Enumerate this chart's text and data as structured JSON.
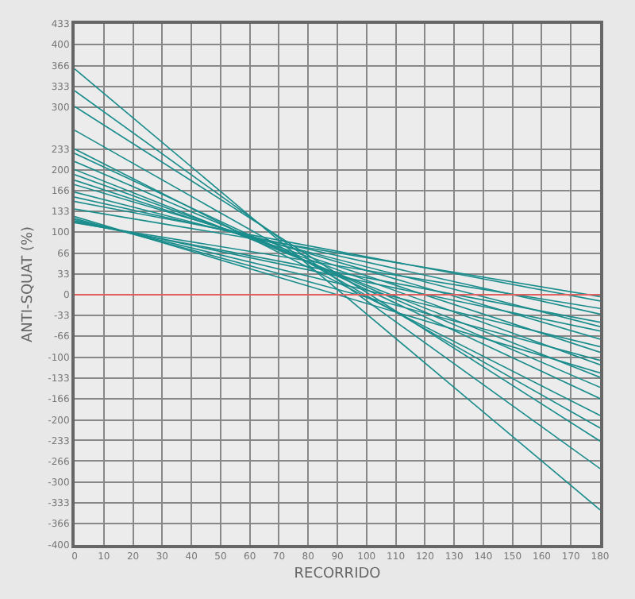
{
  "chart_data": {
    "type": "line",
    "xlabel": "RECORRIDO",
    "ylabel": "ANTI-SQUAT (%)",
    "x": [
      0,
      180
    ],
    "series": [
      {
        "color": "#1a8c8c",
        "values": [
          361,
          -344
        ]
      },
      {
        "color": "#1a8c8c",
        "values": [
          326,
          -278
        ]
      },
      {
        "color": "#1a8c8c",
        "values": [
          301,
          -234
        ]
      },
      {
        "color": "#1a8c8c",
        "values": [
          263,
          -213
        ]
      },
      {
        "color": "#1a8c8c",
        "values": [
          233,
          -193
        ]
      },
      {
        "color": "#1a8c8c",
        "values": [
          226,
          -166
        ]
      },
      {
        "color": "#1a8c8c",
        "values": [
          213,
          -148
        ]
      },
      {
        "color": "#1a8c8c",
        "values": [
          200,
          -132
        ]
      },
      {
        "color": "#1a8c8c",
        "values": [
          192,
          -112
        ]
      },
      {
        "color": "#1a8c8c",
        "values": [
          183,
          -92
        ]
      },
      {
        "color": "#1a8c8c",
        "values": [
          176,
          -71
        ]
      },
      {
        "color": "#1a8c8c",
        "values": [
          164,
          -51
        ]
      },
      {
        "color": "#1a8c8c",
        "values": [
          156,
          -31
        ]
      },
      {
        "color": "#1a8c8c",
        "values": [
          149,
          -10
        ]
      },
      {
        "color": "#1a8c8c",
        "values": [
          137,
          -3
        ]
      },
      {
        "color": "#1a8c8c",
        "values": [
          125,
          -125
        ]
      },
      {
        "color": "#1a8c8c",
        "values": [
          122,
          -105
        ]
      },
      {
        "color": "#1a8c8c",
        "values": [
          120,
          -83
        ]
      },
      {
        "color": "#1a8c8c",
        "values": [
          118,
          -58
        ]
      },
      {
        "color": "#1a8c8c",
        "values": [
          116,
          -44
        ]
      },
      {
        "color": "#1a8c8c",
        "values": [
          115,
          -22
        ]
      }
    ],
    "xlim": [
      0,
      180
    ],
    "xticks": [
      0,
      10,
      20,
      30,
      40,
      50,
      60,
      70,
      80,
      90,
      100,
      110,
      120,
      130,
      140,
      150,
      160,
      170,
      180
    ],
    "ylim": [
      -400,
      433
    ],
    "yticks": [
      433,
      400,
      366,
      333,
      300,
      233,
      200,
      166,
      133,
      100,
      66,
      33,
      0,
      -33,
      -66,
      -100,
      -133,
      -166,
      -200,
      -233,
      -266,
      -300,
      -333,
      -366,
      -400
    ],
    "ref_lines": [
      {
        "axis": "y",
        "value": 0,
        "color": "#e06060"
      }
    ],
    "grid": true,
    "marker": "none",
    "line_style": "solid"
  }
}
